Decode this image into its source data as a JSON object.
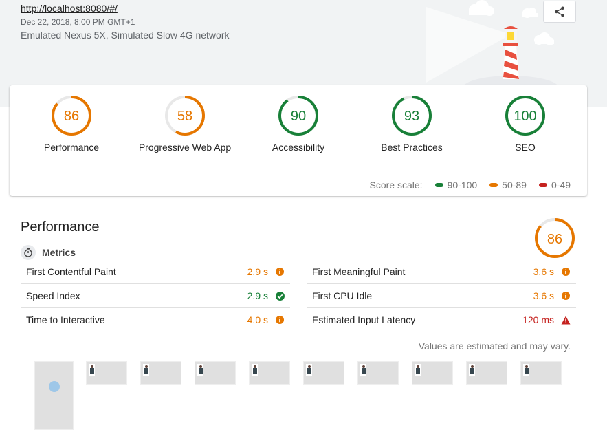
{
  "header": {
    "url": "http://localhost:8080/#/",
    "date": "Dec 22, 2018, 8:00 PM GMT+1",
    "env": "Emulated Nexus 5X, Simulated Slow 4G network",
    "share_icon": "share-icon"
  },
  "gauges": [
    {
      "score": "86",
      "label": "Performance",
      "value": 86,
      "color": "#e67700"
    },
    {
      "score": "58",
      "label": "Progressive Web App",
      "value": 58,
      "color": "#e67700"
    },
    {
      "score": "90",
      "label": "Accessibility",
      "value": 90,
      "color": "#188038"
    },
    {
      "score": "93",
      "label": "Best Practices",
      "value": 93,
      "color": "#188038"
    },
    {
      "score": "100",
      "label": "SEO",
      "value": 100,
      "color": "#188038"
    }
  ],
  "scale": {
    "label": "Score scale:",
    "pass": "90-100",
    "average": "50-89",
    "fail": "0-49",
    "colors": {
      "pass": "#188038",
      "average": "#e67700",
      "fail": "#c5221f"
    }
  },
  "performance": {
    "title": "Performance",
    "score": "86",
    "value": 86,
    "metrics_title": "Metrics",
    "left": [
      {
        "name": "First Contentful Paint",
        "value": "2.9 s",
        "status": "average"
      },
      {
        "name": "Speed Index",
        "value": "2.9 s",
        "status": "pass"
      },
      {
        "name": "Time to Interactive",
        "value": "4.0 s",
        "status": "average"
      }
    ],
    "right": [
      {
        "name": "First Meaningful Paint",
        "value": "3.6 s",
        "status": "average"
      },
      {
        "name": "First CPU Idle",
        "value": "3.6 s",
        "status": "average"
      },
      {
        "name": "Estimated Input Latency",
        "value": "120 ms",
        "status": "fail"
      }
    ],
    "note": "Values are estimated and may vary."
  }
}
